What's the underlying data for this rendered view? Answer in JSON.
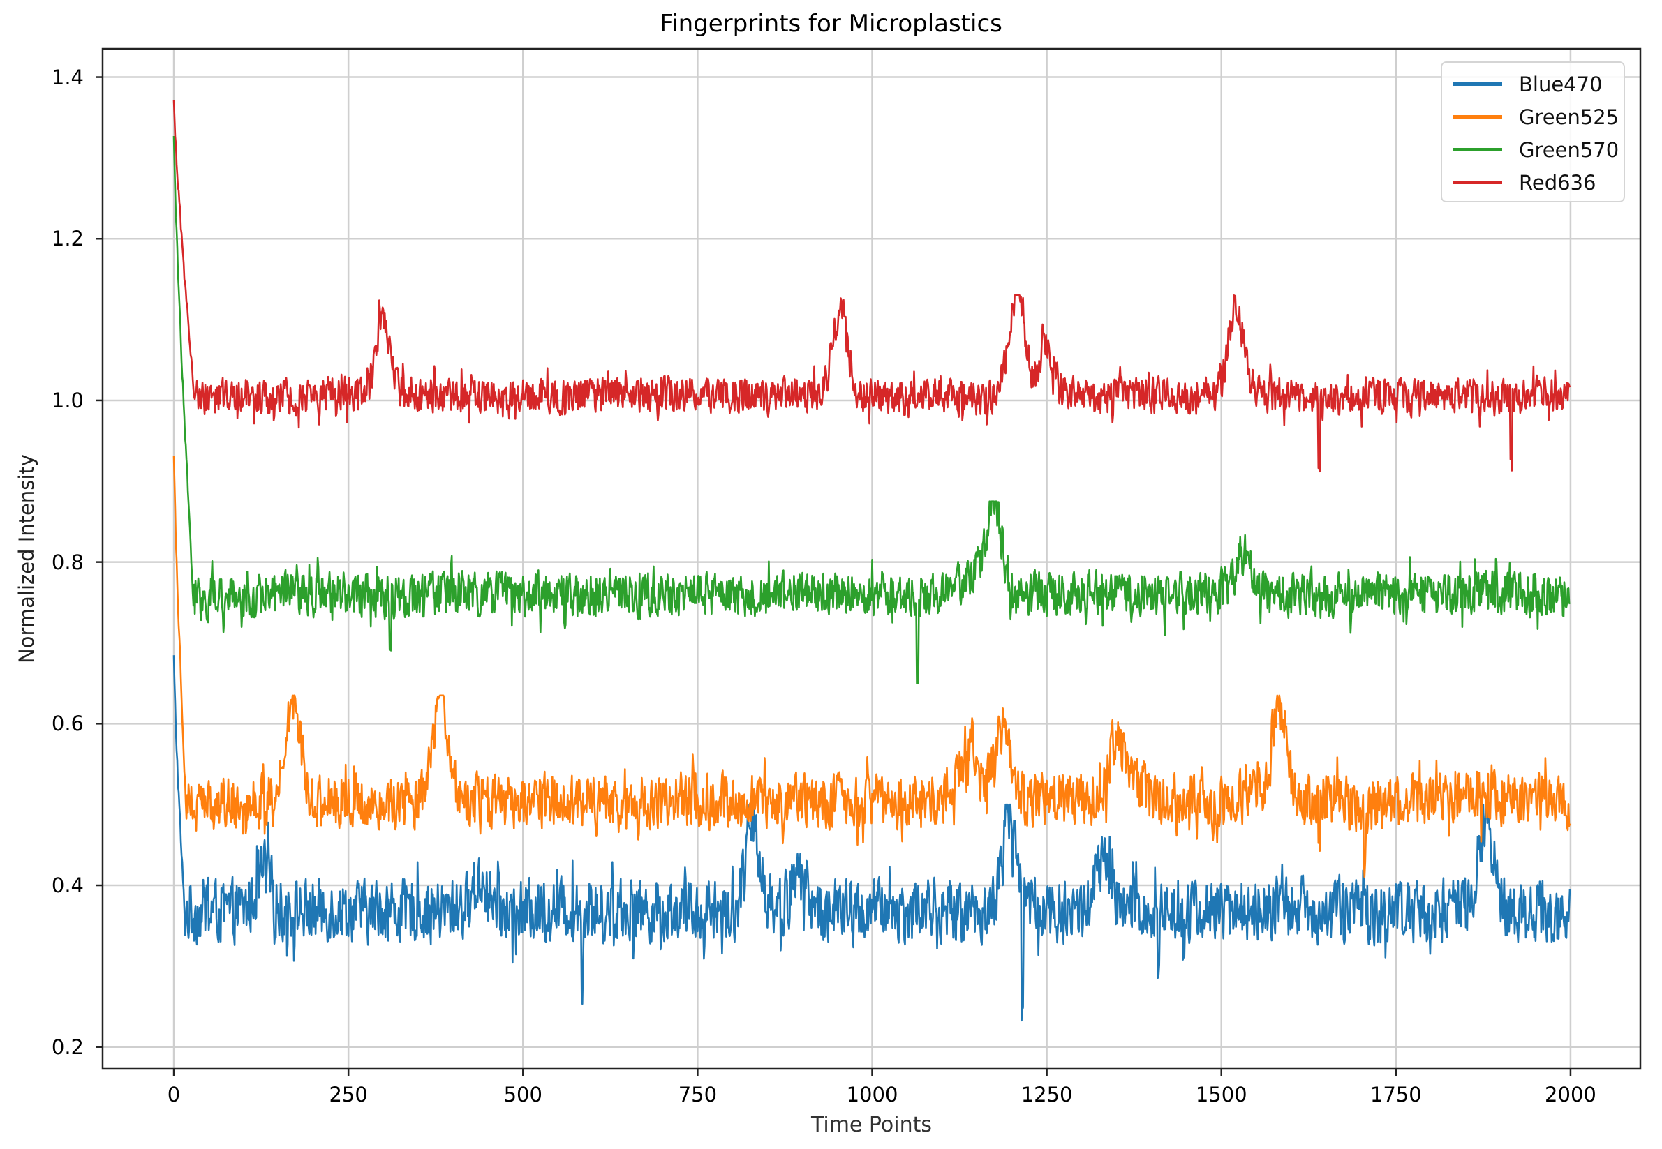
{
  "chart_data": {
    "type": "line",
    "title": "Fingerprints for Microplastics",
    "xlabel": "Time Points",
    "ylabel": "Normalized Intensity",
    "xlim": [
      -102,
      2100
    ],
    "ylim": [
      0.173,
      1.435
    ],
    "xticks": [
      0,
      250,
      500,
      750,
      1000,
      1250,
      1500,
      1750,
      2000
    ],
    "xtick_labels": [
      "0",
      "250",
      "500",
      "750",
      "1000",
      "1250",
      "1500",
      "1750",
      "2000"
    ],
    "yticks": [
      0.2,
      0.4,
      0.6,
      0.8,
      1.0,
      1.2,
      1.4
    ],
    "ytick_labels": [
      "0.2",
      "0.4",
      "0.6",
      "0.8",
      "1.0",
      "1.2",
      "1.4"
    ],
    "grid": true,
    "legend_position": "upper right",
    "n_points": 2000,
    "sample_step": 25,
    "series": [
      {
        "name": "Blue470",
        "color": "#1f77b4",
        "start_value": 0.68,
        "decay_to": 0.37,
        "decay_end_x": 15,
        "baseline": 0.37,
        "noise_amplitude": 0.035,
        "min": 0.23,
        "max": 0.5,
        "peaks": [
          {
            "x": 130,
            "y": 0.45
          },
          {
            "x": 440,
            "y": 0.44
          },
          {
            "x": 830,
            "y": 0.48
          },
          {
            "x": 895,
            "y": 0.44
          },
          {
            "x": 1195,
            "y": 0.5
          },
          {
            "x": 1330,
            "y": 0.46
          },
          {
            "x": 1880,
            "y": 0.49
          }
        ],
        "dips": [
          {
            "x": 585,
            "y": 0.26
          },
          {
            "x": 1215,
            "y": 0.23
          },
          {
            "x": 1410,
            "y": 0.25
          }
        ],
        "values": [
          0.68,
          0.36,
          0.37,
          0.36,
          0.37,
          0.38,
          0.36,
          0.37,
          0.36,
          0.37,
          0.37,
          0.36,
          0.38,
          0.36,
          0.37,
          0.36,
          0.37,
          0.38,
          0.37,
          0.36,
          0.36,
          0.37,
          0.37,
          0.38,
          0.36,
          0.37,
          0.37,
          0.37,
          0.36,
          0.37,
          0.36,
          0.37,
          0.36,
          0.44,
          0.39,
          0.37,
          0.4,
          0.36,
          0.37,
          0.36,
          0.37,
          0.37,
          0.36,
          0.38,
          0.37,
          0.36,
          0.37,
          0.36,
          0.45,
          0.39,
          0.37,
          0.36,
          0.37,
          0.38,
          0.37,
          0.37,
          0.36,
          0.37,
          0.37,
          0.36,
          0.37,
          0.37,
          0.37,
          0.36,
          0.38,
          0.37,
          0.36,
          0.37,
          0.37,
          0.36,
          0.37,
          0.37,
          0.36,
          0.37,
          0.38,
          0.44,
          0.37,
          0.36,
          0.37,
          0.35,
          0.35
        ]
      },
      {
        "name": "Green525",
        "color": "#ff7f0e",
        "start_value": 0.94,
        "decay_to": 0.49,
        "decay_end_x": 18,
        "baseline": 0.505,
        "noise_amplitude": 0.03,
        "min": 0.38,
        "max": 0.635,
        "peaks": [
          {
            "x": 170,
            "y": 0.635
          },
          {
            "x": 385,
            "y": 0.625
          },
          {
            "x": 1140,
            "y": 0.6
          },
          {
            "x": 1190,
            "y": 0.605
          },
          {
            "x": 1350,
            "y": 0.61
          },
          {
            "x": 1585,
            "y": 0.63
          }
        ],
        "dips": [
          {
            "x": 1640,
            "y": 0.42
          },
          {
            "x": 1705,
            "y": 0.38
          }
        ],
        "values": [
          0.94,
          0.49,
          0.49,
          0.5,
          0.49,
          0.5,
          0.5,
          0.61,
          0.5,
          0.5,
          0.51,
          0.5,
          0.5,
          0.5,
          0.5,
          0.62,
          0.5,
          0.51,
          0.5,
          0.5,
          0.5,
          0.5,
          0.51,
          0.5,
          0.51,
          0.51,
          0.5,
          0.5,
          0.5,
          0.51,
          0.51,
          0.5,
          0.51,
          0.51,
          0.5,
          0.51,
          0.51,
          0.5,
          0.51,
          0.5,
          0.51,
          0.51,
          0.5,
          0.51,
          0.5,
          0.56,
          0.51,
          0.59,
          0.51,
          0.5,
          0.51,
          0.51,
          0.51,
          0.5,
          0.51,
          0.59,
          0.51,
          0.5,
          0.51,
          0.51,
          0.5,
          0.51,
          0.51,
          0.62,
          0.49,
          0.5,
          0.51,
          0.5,
          0.45,
          0.5,
          0.51,
          0.5,
          0.51,
          0.52,
          0.53,
          0.51,
          0.51,
          0.5,
          0.5,
          0.51,
          0.5
        ]
      },
      {
        "name": "Green570",
        "color": "#2ca02c",
        "start_value": 1.33,
        "decay_to": 0.75,
        "decay_end_x": 28,
        "baseline": 0.76,
        "noise_amplitude": 0.025,
        "min": 0.65,
        "max": 0.875,
        "peaks": [
          {
            "x": 1175,
            "y": 0.875
          },
          {
            "x": 1530,
            "y": 0.83
          }
        ],
        "dips": [
          {
            "x": 310,
            "y": 0.68
          },
          {
            "x": 560,
            "y": 0.68
          },
          {
            "x": 1065,
            "y": 0.65
          }
        ],
        "values": [
          1.33,
          0.76,
          0.75,
          0.76,
          0.75,
          0.76,
          0.76,
          0.76,
          0.76,
          0.76,
          0.76,
          0.76,
          0.75,
          0.76,
          0.76,
          0.76,
          0.77,
          0.76,
          0.76,
          0.76,
          0.76,
          0.76,
          0.76,
          0.75,
          0.76,
          0.77,
          0.76,
          0.76,
          0.76,
          0.76,
          0.76,
          0.77,
          0.76,
          0.76,
          0.76,
          0.76,
          0.77,
          0.76,
          0.76,
          0.76,
          0.76,
          0.76,
          0.75,
          0.76,
          0.76,
          0.8,
          0.84,
          0.85,
          0.76,
          0.76,
          0.76,
          0.76,
          0.77,
          0.77,
          0.77,
          0.76,
          0.77,
          0.76,
          0.76,
          0.77,
          0.77,
          0.77,
          0.78,
          0.76,
          0.76,
          0.76,
          0.76,
          0.76,
          0.76,
          0.76,
          0.76,
          0.76,
          0.77,
          0.76,
          0.77,
          0.77,
          0.76,
          0.77,
          0.76,
          0.75,
          0.74
        ]
      },
      {
        "name": "Red636",
        "color": "#d62728",
        "start_value": 1.37,
        "decay_to": 1.0,
        "decay_end_x": 30,
        "baseline": 1.005,
        "noise_amplitude": 0.02,
        "min": 0.9,
        "max": 1.13,
        "peaks": [
          {
            "x": 300,
            "y": 1.1
          },
          {
            "x": 955,
            "y": 1.11
          },
          {
            "x": 1210,
            "y": 1.13
          },
          {
            "x": 1250,
            "y": 1.07
          },
          {
            "x": 1520,
            "y": 1.11
          }
        ],
        "dips": [
          {
            "x": 1640,
            "y": 0.9
          },
          {
            "x": 1915,
            "y": 0.9
          }
        ],
        "values": [
          1.37,
          1.0,
          1.0,
          1.0,
          1.01,
          1.0,
          1.01,
          1.0,
          1.01,
          1.01,
          1.01,
          1.0,
          1.07,
          1.01,
          1.01,
          1.01,
          1.0,
          1.01,
          1.0,
          1.0,
          1.01,
          1.01,
          1.0,
          1.01,
          1.01,
          1.01,
          1.0,
          1.01,
          1.01,
          1.01,
          1.01,
          1.01,
          1.01,
          1.01,
          1.0,
          1.01,
          1.01,
          1.01,
          1.08,
          1.01,
          1.01,
          1.01,
          1.0,
          1.01,
          1.01,
          1.0,
          1.0,
          1.0,
          1.12,
          1.01,
          1.05,
          1.01,
          1.01,
          1.0,
          1.01,
          1.01,
          1.01,
          1.0,
          1.0,
          1.01,
          1.02,
          1.09,
          1.01,
          1.01,
          1.01,
          1.0,
          0.98,
          1.01,
          1.01,
          1.01,
          1.01,
          1.0,
          1.01,
          1.01,
          1.01,
          1.0,
          1.0,
          1.0,
          1.01,
          1.01,
          1.01
        ]
      }
    ]
  }
}
